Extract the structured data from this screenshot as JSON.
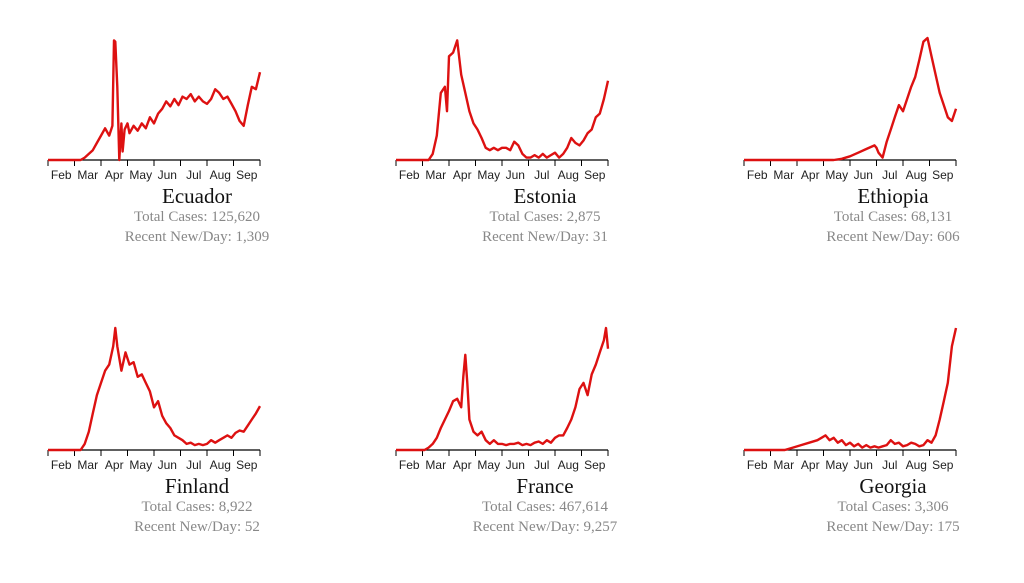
{
  "chart_data": [
    {
      "type": "line",
      "title": "Ecuador",
      "total_label": "Total Cases:",
      "total_value": "125,620",
      "recent_label": "Recent New/Day:",
      "recent_value": "1,309",
      "color": "#dd1111",
      "x_labels": [
        "Feb",
        "Mar",
        "Apr",
        "May",
        "Jun",
        "Jul",
        "Aug",
        "Sep"
      ],
      "xlim": [
        0,
        52
      ],
      "ylim": [
        0,
        100
      ],
      "x": [
        0,
        4,
        8,
        9,
        10,
        11,
        12,
        13,
        14,
        15,
        15.8,
        16.2,
        16.5,
        17,
        17.5,
        18,
        18.3,
        18.8,
        19.5,
        20,
        21,
        22,
        23,
        24,
        25,
        26,
        27,
        28,
        29,
        30,
        31,
        32,
        33,
        34,
        35,
        36,
        37,
        38,
        39,
        40,
        41,
        42,
        43,
        44,
        45,
        46,
        47,
        48,
        49,
        50,
        51,
        52
      ],
      "y": [
        0,
        0,
        0,
        2,
        5,
        8,
        14,
        20,
        26,
        20,
        28,
        98,
        97,
        60,
        0,
        30,
        7,
        25,
        30,
        22,
        28,
        24,
        30,
        26,
        35,
        30,
        38,
        42,
        48,
        44,
        50,
        45,
        52,
        50,
        54,
        48,
        52,
        48,
        46,
        50,
        58,
        55,
        50,
        52,
        46,
        40,
        32,
        28,
        45,
        60,
        58,
        72
      ]
    },
    {
      "type": "line",
      "title": "Estonia",
      "total_label": "Total Cases:",
      "total_value": "2,875",
      "recent_label": "Recent New/Day:",
      "recent_value": "31",
      "color": "#dd1111",
      "x_labels": [
        "Feb",
        "Mar",
        "Apr",
        "May",
        "Jun",
        "Jul",
        "Aug",
        "Sep"
      ],
      "xlim": [
        0,
        52
      ],
      "ylim": [
        0,
        100
      ],
      "x": [
        0,
        8,
        9,
        10,
        11,
        12,
        12.5,
        13,
        14,
        15,
        16,
        17,
        18,
        19,
        20,
        21,
        22,
        23,
        24,
        25,
        26,
        27,
        28,
        29,
        30,
        31,
        32,
        33,
        34,
        35,
        36,
        37,
        38,
        39,
        40,
        41,
        42,
        43,
        44,
        45,
        46,
        47,
        48,
        49,
        50,
        51,
        52
      ],
      "y": [
        0,
        0,
        5,
        20,
        55,
        60,
        40,
        85,
        88,
        98,
        70,
        55,
        40,
        30,
        25,
        18,
        10,
        8,
        10,
        8,
        10,
        10,
        8,
        15,
        12,
        5,
        2,
        2,
        4,
        2,
        5,
        2,
        4,
        6,
        2,
        5,
        10,
        18,
        14,
        12,
        16,
        22,
        25,
        35,
        38,
        50,
        65
      ]
    },
    {
      "type": "line",
      "title": "Ethiopia",
      "total_label": "Total Cases:",
      "total_value": "68,131",
      "recent_label": "Recent New/Day:",
      "recent_value": "606",
      "color": "#dd1111",
      "x_labels": [
        "Feb",
        "Mar",
        "Apr",
        "May",
        "Jun",
        "Jul",
        "Aug",
        "Sep"
      ],
      "xlim": [
        0,
        52
      ],
      "ylim": [
        0,
        100
      ],
      "x": [
        0,
        22,
        24,
        26,
        28,
        30,
        32,
        32.5,
        33,
        34,
        35,
        36,
        37,
        38,
        39,
        40,
        41,
        42,
        43,
        44,
        45,
        46,
        47,
        48,
        49,
        50,
        51,
        52
      ],
      "y": [
        0,
        0,
        1,
        3,
        6,
        9,
        12,
        10,
        6,
        2,
        15,
        25,
        35,
        45,
        40,
        50,
        60,
        68,
        82,
        97,
        100,
        85,
        70,
        55,
        45,
        35,
        32,
        42
      ]
    },
    {
      "type": "line",
      "title": "Finland",
      "total_label": "Total Cases:",
      "total_value": "8,922",
      "recent_label": "Recent New/Day:",
      "recent_value": "52",
      "color": "#dd1111",
      "x_labels": [
        "Feb",
        "Mar",
        "Apr",
        "May",
        "Jun",
        "Jul",
        "Aug",
        "Sep"
      ],
      "xlim": [
        0,
        52
      ],
      "ylim": [
        0,
        100
      ],
      "x": [
        0,
        8,
        9,
        10,
        11,
        12,
        13,
        14,
        15,
        16,
        16.5,
        17,
        18,
        19,
        20,
        21,
        22,
        23,
        24,
        25,
        26,
        27,
        28,
        29,
        30,
        31,
        32,
        33,
        34,
        35,
        36,
        37,
        38,
        39,
        40,
        41,
        42,
        43,
        44,
        45,
        46,
        47,
        48,
        49,
        50,
        51,
        52
      ],
      "y": [
        0,
        0,
        5,
        15,
        30,
        45,
        55,
        65,
        70,
        85,
        100,
        85,
        65,
        80,
        70,
        72,
        60,
        62,
        55,
        48,
        35,
        40,
        28,
        22,
        18,
        12,
        10,
        8,
        5,
        6,
        4,
        5,
        4,
        5,
        8,
        6,
        8,
        10,
        12,
        10,
        14,
        16,
        15,
        20,
        25,
        30,
        36
      ]
    },
    {
      "type": "line",
      "title": "France",
      "total_label": "Total Cases:",
      "total_value": "467,614",
      "recent_label": "Recent New/Day:",
      "recent_value": "9,257",
      "color": "#dd1111",
      "x_labels": [
        "Feb",
        "Mar",
        "Apr",
        "May",
        "Jun",
        "Jul",
        "Aug",
        "Sep"
      ],
      "xlim": [
        0,
        52
      ],
      "ylim": [
        0,
        100
      ],
      "x": [
        0,
        7,
        8,
        9,
        10,
        11,
        12,
        13,
        14,
        15,
        16,
        16.5,
        17,
        17.5,
        18,
        19,
        20,
        21,
        22,
        23,
        24,
        25,
        26,
        27,
        28,
        29,
        30,
        31,
        32,
        33,
        34,
        35,
        36,
        37,
        38,
        39,
        40,
        41,
        42,
        43,
        44,
        45,
        46,
        47,
        48,
        49,
        50,
        51,
        51.5,
        52
      ],
      "y": [
        0,
        0,
        2,
        5,
        10,
        18,
        25,
        32,
        40,
        42,
        35,
        60,
        78,
        55,
        25,
        15,
        12,
        15,
        8,
        5,
        8,
        5,
        5,
        4,
        5,
        5,
        6,
        4,
        5,
        4,
        6,
        7,
        5,
        8,
        6,
        10,
        12,
        12,
        18,
        25,
        35,
        50,
        55,
        45,
        62,
        70,
        80,
        90,
        100,
        83
      ]
    },
    {
      "type": "line",
      "title": "Georgia",
      "total_label": "Total Cases:",
      "total_value": "3,306",
      "recent_label": "Recent New/Day:",
      "recent_value": "175",
      "color": "#dd1111",
      "x_labels": [
        "Feb",
        "Mar",
        "Apr",
        "May",
        "Jun",
        "Jul",
        "Aug",
        "Sep"
      ],
      "xlim": [
        0,
        52
      ],
      "ylim": [
        0,
        100
      ],
      "x": [
        0,
        10,
        12,
        14,
        16,
        18,
        19,
        20,
        21,
        22,
        23,
        24,
        25,
        26,
        27,
        28,
        29,
        30,
        31,
        32,
        33,
        34,
        35,
        36,
        37,
        38,
        39,
        40,
        41,
        42,
        43,
        44,
        45,
        46,
        47,
        48,
        49,
        50,
        51,
        52
      ],
      "y": [
        0,
        0,
        2,
        4,
        6,
        8,
        10,
        12,
        8,
        10,
        6,
        8,
        4,
        6,
        3,
        5,
        2,
        4,
        2,
        3,
        2,
        3,
        4,
        8,
        5,
        6,
        3,
        4,
        6,
        5,
        3,
        4,
        8,
        6,
        12,
        25,
        40,
        55,
        85,
        100
      ]
    }
  ]
}
